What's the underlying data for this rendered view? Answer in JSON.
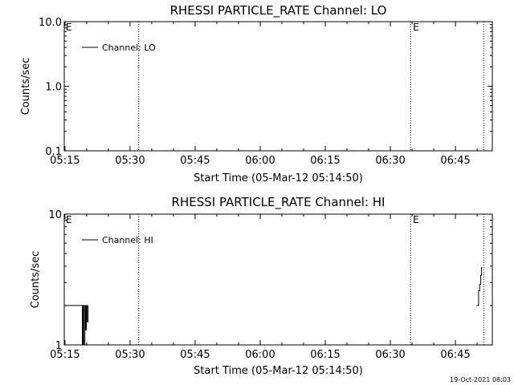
{
  "chart_data": [
    {
      "type": "line",
      "title": "RHESSI PARTICLE_RATE Channel: LO",
      "xlabel": "Start Time (05-Mar-12 05:14:50)",
      "ylabel": "Counts/sec",
      "xlim": [
        "05:14:50",
        "06:53:30"
      ],
      "ylim": [
        0.1,
        10.0
      ],
      "yscale": "log",
      "xtick_labels": [
        "05:15",
        "05:30",
        "05:45",
        "06:00",
        "06:15",
        "06:30",
        "06:45"
      ],
      "ytick_labels": [
        "0.1",
        "1.0",
        "10.0"
      ],
      "legend_position": "top-left",
      "series": [
        {
          "name": "Channel: LO",
          "x": [],
          "y": []
        }
      ],
      "vlines": [
        "05:32:00",
        "06:34:40",
        "06:51:30"
      ],
      "markers": [
        {
          "label": "E",
          "x": "05:15:00"
        },
        {
          "label": "E",
          "x": "06:35:00"
        }
      ]
    },
    {
      "type": "line",
      "title": "RHESSI PARTICLE_RATE Channel: HI",
      "xlabel": "Start Time (05-Mar-12 05:14:50)",
      "ylabel": "Counts/sec",
      "xlim": [
        "05:14:50",
        "06:53:30"
      ],
      "ylim": [
        1,
        10
      ],
      "yscale": "log",
      "xtick_labels": [
        "05:15",
        "05:30",
        "05:45",
        "06:00",
        "06:15",
        "06:30",
        "06:45"
      ],
      "ytick_labels": [
        "1",
        "10"
      ],
      "legend_position": "top-left",
      "series": [
        {
          "name": "Channel: HI",
          "x": [
            "05:14:50",
            "05:19:00",
            "05:19:00",
            "05:19:10",
            "05:19:10",
            "05:19:20",
            "05:19:20",
            "05:19:35",
            "05:19:35",
            "05:19:45",
            "05:19:45",
            "05:19:55",
            "05:19:55",
            "05:20:05",
            "05:20:05",
            "05:20:20",
            "05:20:20",
            "06:49:55",
            "06:50:20",
            "06:50:20",
            "06:50:35",
            "06:50:35",
            "06:50:50",
            "06:50:50",
            "06:51:00",
            "06:51:00",
            "06:51:10"
          ],
          "y": [
            2,
            2,
            1,
            1,
            2,
            2,
            1,
            1,
            2,
            2,
            1.3,
            1.3,
            2,
            2,
            1.5,
            1.5,
            2,
            2,
            2,
            2.6,
            2.6,
            2.9,
            2.9,
            3.4,
            3.4,
            3.9,
            3.9
          ]
        }
      ],
      "vlines": [
        "05:32:00",
        "06:34:40",
        "06:51:30"
      ],
      "markers": [
        {
          "label": "E",
          "x": "05:15:00"
        },
        {
          "label": "E",
          "x": "06:35:00"
        }
      ]
    }
  ],
  "footer": {
    "timestamp": "19-Oct-2021 08:03"
  }
}
